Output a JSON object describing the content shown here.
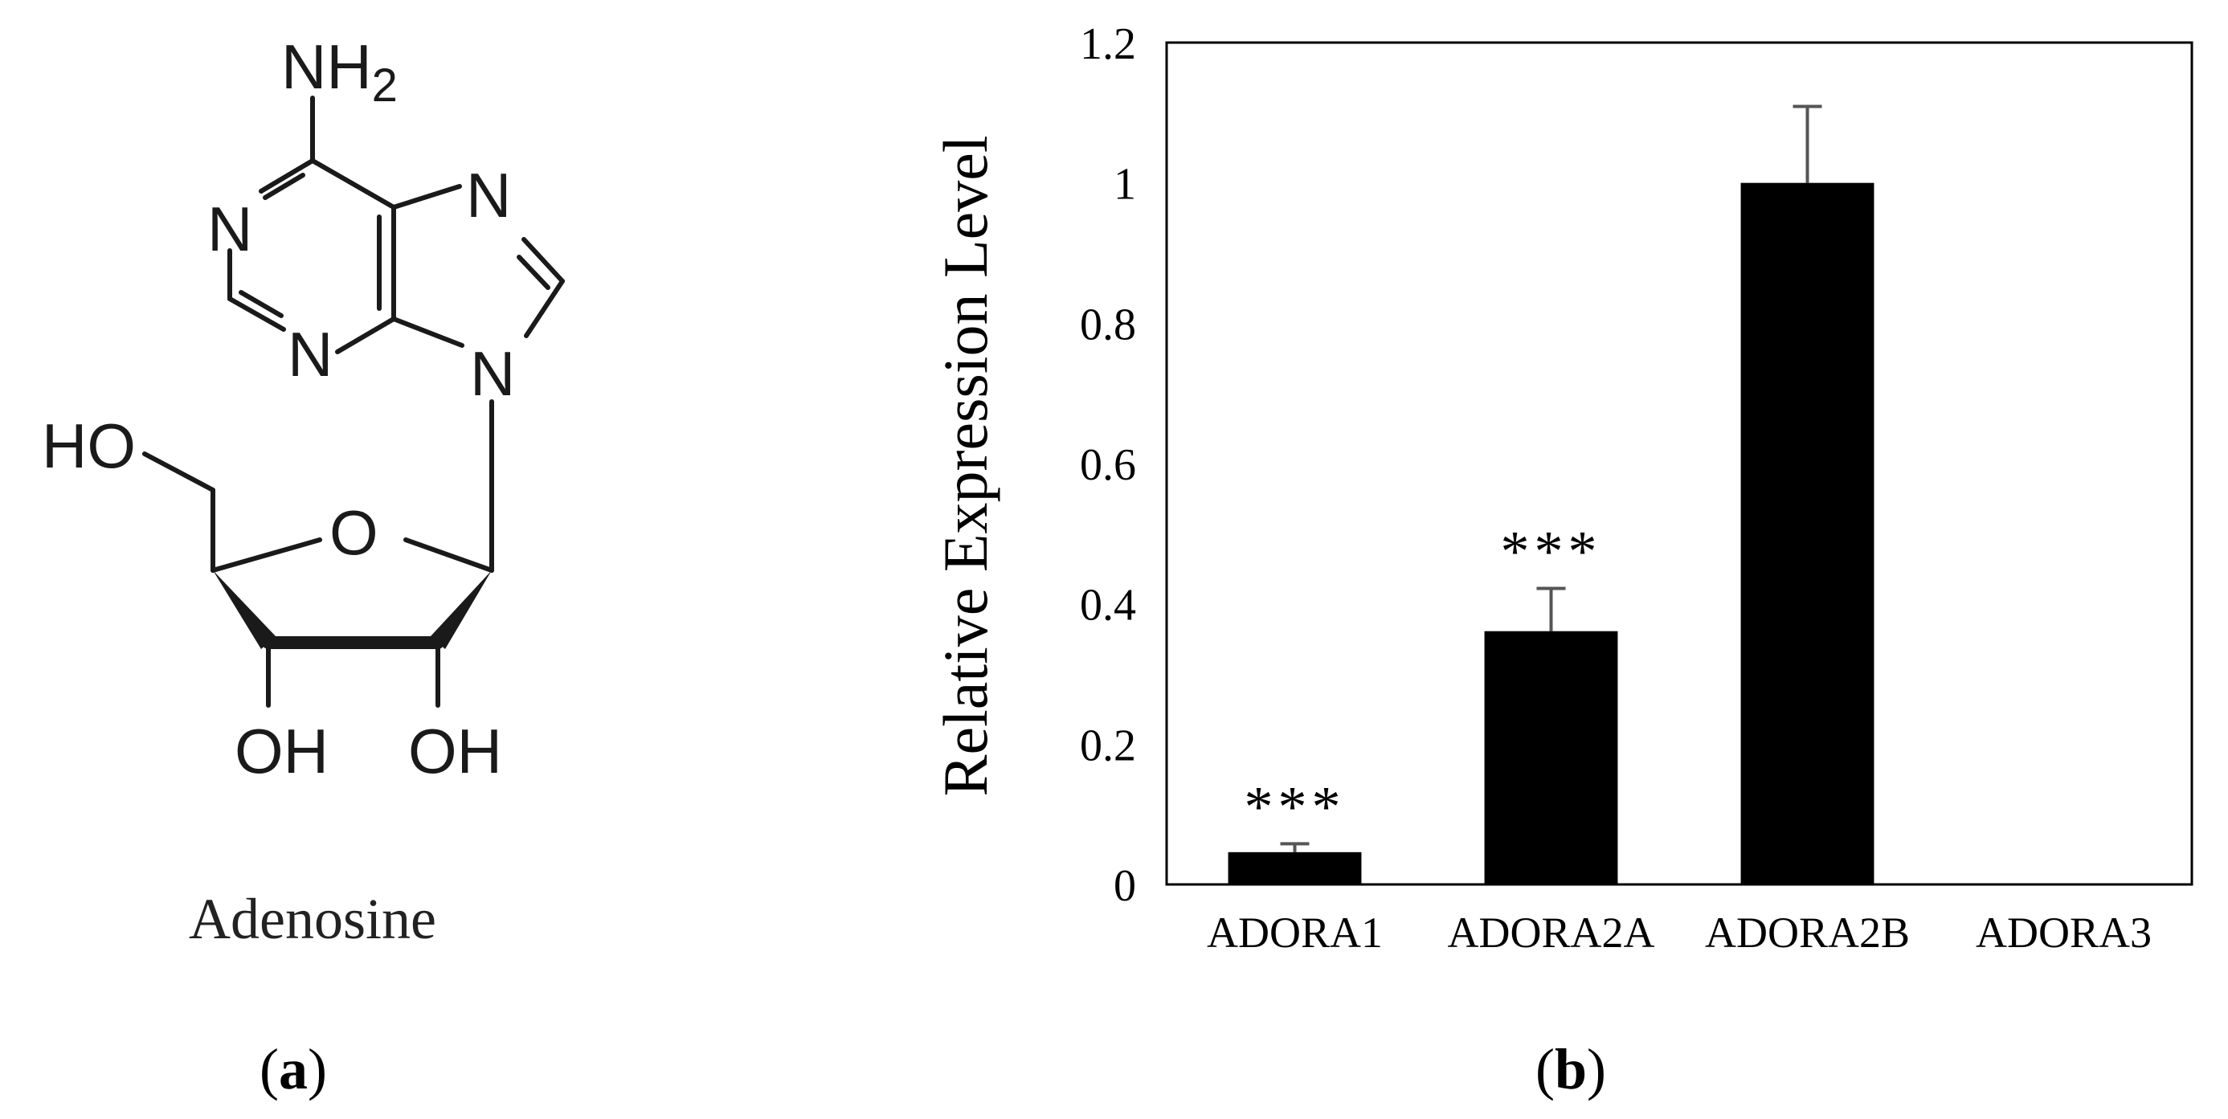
{
  "panel_a": {
    "molecule": {
      "atoms": {
        "nh2_n": "NH",
        "nh2_sub": "2",
        "n1": "N",
        "n3": "N",
        "n7": "N",
        "n9": "N",
        "ring_o": "O",
        "ho_left": "HO",
        "oh_2": "OH",
        "oh_3": "OH"
      }
    },
    "compound_name": "Adenosine",
    "label_open": "(",
    "label_letter": "a",
    "label_close": ")"
  },
  "panel_b": {
    "label_open": "(",
    "label_letter": "b",
    "label_close": ")"
  },
  "chart_data": {
    "type": "bar",
    "title": "",
    "xlabel": "",
    "ylabel": "Relative Expression Level",
    "categories": [
      "ADORA1",
      "ADORA2A",
      "ADORA2B",
      "ADORA3"
    ],
    "values": [
      0.046,
      0.361,
      1.0,
      0.0
    ],
    "errors": [
      0.012,
      0.061,
      0.109,
      0.0
    ],
    "annotations": [
      "***",
      "***",
      "",
      ""
    ],
    "ylim": [
      0,
      1.2
    ],
    "yticks": [
      0,
      0.2,
      0.4,
      0.6,
      0.8,
      1,
      1.2
    ],
    "ytick_labels": [
      "0",
      "0.2",
      "0.4",
      "0.6",
      "0.8",
      "1",
      "1.2"
    ],
    "grid": false,
    "legend": "none",
    "bar_color": "#000000",
    "error_bar_color": "#555555"
  }
}
